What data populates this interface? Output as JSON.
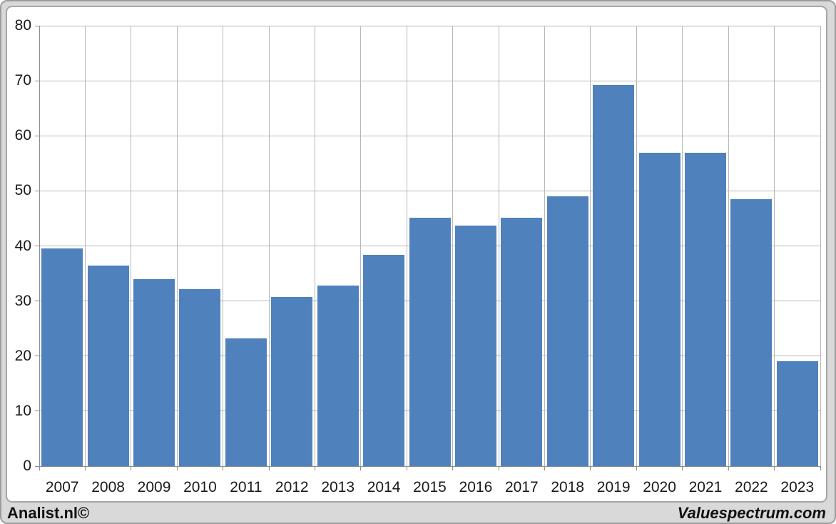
{
  "chart_data": {
    "type": "bar",
    "categories": [
      "2007",
      "2008",
      "2009",
      "2010",
      "2011",
      "2012",
      "2013",
      "2014",
      "2015",
      "2016",
      "2017",
      "2018",
      "2019",
      "2020",
      "2021",
      "2022",
      "2023"
    ],
    "values": [
      39.6,
      36.4,
      34.0,
      32.1,
      23.2,
      30.7,
      32.8,
      38.4,
      45.1,
      43.7,
      45.1,
      49.0,
      69.2,
      56.9,
      56.9,
      48.5,
      19.0
    ],
    "title": "",
    "xlabel": "",
    "ylabel": "",
    "ylim": [
      0,
      80
    ],
    "y_ticks": [
      0,
      10,
      20,
      30,
      40,
      50,
      60,
      70,
      80
    ],
    "grid": true,
    "legend": false,
    "bar_color": "#4f81bd"
  },
  "footer": {
    "left": "Analist.nl©",
    "right": "Valuespectrum.com"
  },
  "colors": {
    "bar": "#4f81bd",
    "page_background": "#d9d9d9",
    "plot_background": "#ffffff",
    "gridline": "#b7b7b7",
    "axis_line": "#8c8c8c",
    "frame_border": "#a6a6a6",
    "label_text": "#1a1a1a"
  }
}
